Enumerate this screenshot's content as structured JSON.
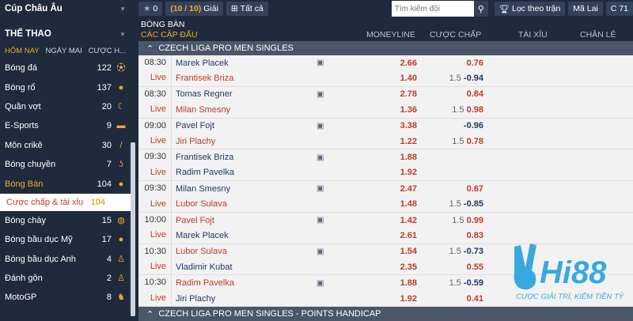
{
  "sidebar": {
    "top": "Cúp Châu Âu",
    "section": "THỂ THAO",
    "tabs": [
      "HÔM NAY",
      "NGÀY MAI",
      "CƯỢC H..."
    ],
    "items": [
      {
        "label": "Bóng đá",
        "count": "122",
        "icon": "soccer-ball-icon"
      },
      {
        "label": "Bóng rổ",
        "count": "137",
        "icon": "basketball-icon"
      },
      {
        "label": "Quần vợt",
        "count": "20",
        "icon": "tennis-icon"
      },
      {
        "label": "E-Sports",
        "count": "9",
        "icon": "gamepad-icon"
      },
      {
        "label": "Môn crikê",
        "count": "30",
        "icon": "cricket-icon"
      },
      {
        "label": "Bóng chuyền",
        "count": "7",
        "icon": "volleyball-icon"
      },
      {
        "label": "Bóng Bàn",
        "count": "104",
        "icon": "table-tennis-icon"
      }
    ],
    "sub": {
      "label": "Cược chấp & tài xỉu",
      "count": "104"
    },
    "items2": [
      {
        "label": "Bóng chày",
        "count": "15",
        "icon": "baseball-icon"
      },
      {
        "label": "Bóng bầu dục Mỹ",
        "count": "17",
        "icon": "american-football-icon"
      },
      {
        "label": "Bóng bầu dục Anh",
        "count": "4",
        "icon": "rugby-icon"
      },
      {
        "label": "Đánh gôn",
        "count": "2",
        "icon": "golf-icon"
      },
      {
        "label": "MotoGP",
        "count": "8",
        "icon": "motorbike-icon"
      }
    ]
  },
  "toolbar": {
    "fav": "0",
    "leagues_open": "( ",
    "leagues_count": "10 / 10",
    "leagues_close": " )",
    "leagues_label": "Giải",
    "all": "Tất cả",
    "search_placeholder": "Tìm kiếm đội",
    "filter": "Lọc theo trận",
    "malai": "Mã Lai",
    "refresh": "71"
  },
  "header": {
    "sport": "BÓNG BÀN",
    "matches": "CÁC CẶP ĐẤU",
    "cols": [
      "MONEYLINE",
      "CƯỢC CHẤP",
      "TÀI XỈU",
      "CHẴN LẺ"
    ]
  },
  "leagues": [
    "CZECH LIGA PRO MEN SINGLES",
    "CZECH LIGA PRO MEN SINGLES - POINTS HANDICAP"
  ],
  "matches": [
    {
      "time": "08:30",
      "status": "Live",
      "home": "Marek Placek",
      "away": "Frantisek Briza",
      "fav": "away",
      "ml": [
        "2.66",
        "1.40"
      ],
      "hc": [
        [
          "",
          "0.76"
        ],
        [
          "1.5",
          "-0.94"
        ]
      ]
    },
    {
      "time": "08:30",
      "status": "Live",
      "home": "Tomas Regner",
      "away": "Milan Smesny",
      "fav": "away",
      "ml": [
        "2.78",
        "1.36"
      ],
      "hc": [
        [
          "",
          "0.84"
        ],
        [
          "1.5",
          "0.98"
        ]
      ]
    },
    {
      "time": "09:00",
      "status": "Live",
      "home": "Pavel Fojt",
      "away": "Jiri Plachy",
      "fav": "away",
      "ml": [
        "3.38",
        "1.22"
      ],
      "hc": [
        [
          "",
          "-0.96"
        ],
        [
          "1.5",
          "0.78"
        ]
      ]
    },
    {
      "time": "09:30",
      "status": "Live",
      "home": "Frantisek Briza",
      "away": "Radim Pavelka",
      "fav": "",
      "ml": [
        "1.88",
        "1.92"
      ],
      "hc": [
        [
          "",
          ""
        ],
        [
          "",
          ""
        ]
      ]
    },
    {
      "time": "09:30",
      "status": "Live",
      "home": "Milan Smesny",
      "away": "Lubor Sulava",
      "fav": "away",
      "ml": [
        "2.47",
        "1.48"
      ],
      "hc": [
        [
          "",
          "0.67"
        ],
        [
          "1.5",
          "-0.85"
        ]
      ]
    },
    {
      "time": "10:00",
      "status": "Live",
      "home": "Pavel Fojt",
      "away": "Marek Placek",
      "fav": "home",
      "ml": [
        "1.42",
        "2.61"
      ],
      "hc": [
        [
          "1.5",
          "0.99"
        ],
        [
          "",
          "0.83"
        ]
      ]
    },
    {
      "time": "10:30",
      "status": "Live",
      "home": "Lubor Sulava",
      "away": "Vladimir Kubat",
      "fav": "home",
      "ml": [
        "1.54",
        "2.35"
      ],
      "hc": [
        [
          "1.5",
          "-0.73"
        ],
        [
          "",
          "0.55"
        ]
      ]
    },
    {
      "time": "10:30",
      "status": "Live",
      "home": "Radim Pavelka",
      "away": "Jiri Plachy",
      "fav": "home",
      "ml": [
        "1.88",
        "1.92"
      ],
      "hc": [
        [
          "1.5",
          "-0.59"
        ],
        [
          "",
          "0.41"
        ]
      ]
    }
  ],
  "logo": {
    "brand": "Hi88",
    "tagline": "CƯỢC GIẢI TRÍ, KIẾM TIỀN TỶ"
  },
  "colors": {
    "accent": "#f0a830",
    "odds_red": "#c0392b",
    "navy": "#1f2a3c",
    "logo_blue": "#3aa8e0"
  }
}
